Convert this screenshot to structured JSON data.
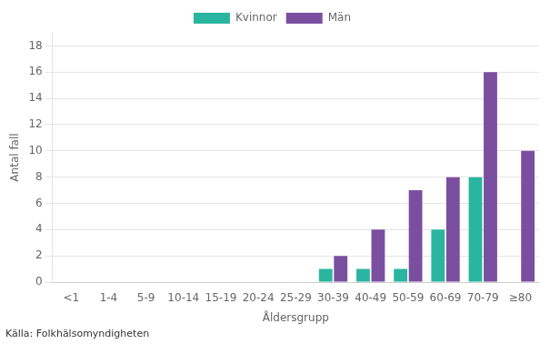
{
  "chart_data": {
    "type": "bar",
    "categories": [
      "<1",
      "1-4",
      "5-9",
      "10-14",
      "15-19",
      "20-24",
      "25-29",
      "30-39",
      "40-49",
      "50-59",
      "60-69",
      "70-79",
      "≥80"
    ],
    "series": [
      {
        "name": "Kvinnor",
        "color": "#2ab5a0",
        "values": [
          0,
          0,
          0,
          0,
          0,
          0,
          0,
          1,
          1,
          1,
          4,
          8,
          0
        ]
      },
      {
        "name": "Män",
        "color": "#7b4fa0",
        "values": [
          0,
          0,
          0,
          0,
          0,
          0,
          0,
          2,
          4,
          7,
          8,
          16,
          10
        ]
      }
    ],
    "xlabel": "Åldersgrupp",
    "ylabel": "Antal fall",
    "annotations": [
      "Källa: Folkhälsomyndigheten"
    ],
    "ylim": [
      0,
      19
    ],
    "yticks": [
      0,
      2,
      4,
      6,
      8,
      10,
      12,
      14,
      16,
      18
    ],
    "grid": true,
    "legend": "top"
  }
}
